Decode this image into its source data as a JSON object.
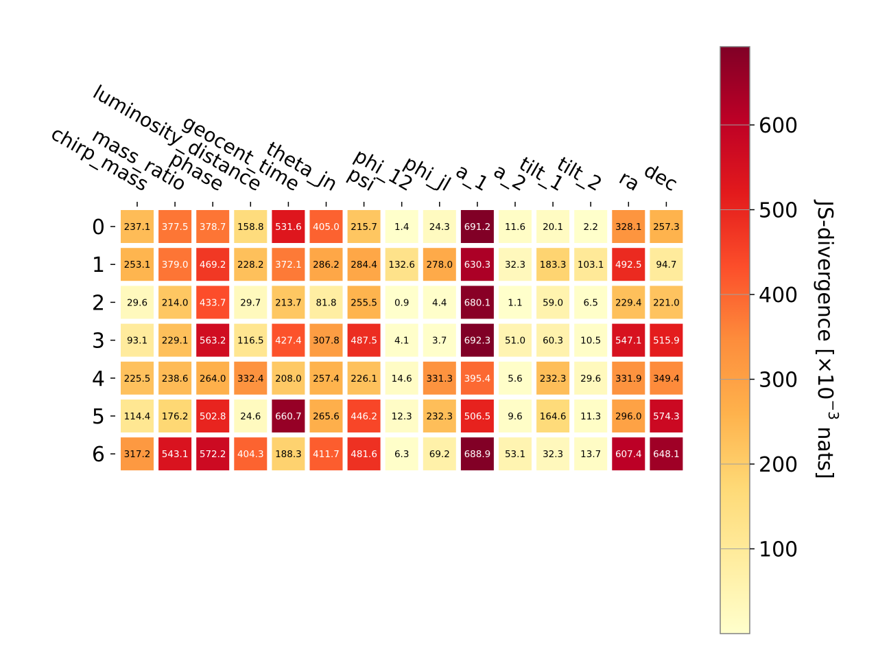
{
  "chart_data": {
    "type": "heatmap",
    "title": "",
    "xlabel": "",
    "ylabel": "",
    "columns": [
      "chirp_mass",
      "mass_ratio",
      "phase",
      "luminosity_distance",
      "geocent_time",
      "theta_jn",
      "psi",
      "phi_12",
      "phi_jl",
      "a_1",
      "a_2",
      "tilt_1",
      "tilt_2",
      "ra",
      "dec"
    ],
    "rows": [
      "0",
      "1",
      "2",
      "3",
      "4",
      "5",
      "6"
    ],
    "values": [
      [
        237.1,
        377.5,
        378.7,
        158.8,
        531.6,
        405.0,
        215.7,
        1.4,
        24.3,
        691.2,
        11.6,
        20.1,
        2.2,
        328.1,
        257.3
      ],
      [
        253.1,
        379.0,
        469.2,
        228.2,
        372.1,
        286.2,
        284.4,
        132.6,
        278.0,
        630.3,
        32.3,
        183.3,
        103.1,
        492.5,
        94.7
      ],
      [
        29.6,
        214.0,
        433.7,
        29.7,
        213.7,
        81.8,
        255.5,
        0.9,
        4.4,
        680.1,
        1.1,
        59.0,
        6.5,
        229.4,
        221.0
      ],
      [
        93.1,
        229.1,
        563.2,
        116.5,
        427.4,
        307.8,
        487.5,
        4.1,
        3.7,
        692.3,
        51.0,
        60.3,
        10.5,
        547.1,
        515.9
      ],
      [
        225.5,
        238.6,
        264.0,
        332.4,
        208.0,
        257.4,
        226.1,
        14.6,
        331.3,
        395.4,
        5.6,
        232.3,
        29.6,
        331.9,
        349.4
      ],
      [
        114.4,
        176.2,
        502.8,
        24.6,
        660.7,
        265.6,
        446.2,
        12.3,
        232.3,
        506.5,
        9.6,
        164.6,
        11.3,
        296.0,
        574.3
      ],
      [
        317.2,
        543.1,
        572.2,
        404.3,
        188.3,
        411.7,
        481.6,
        6.3,
        69.2,
        688.9,
        53.1,
        32.3,
        13.7,
        607.4,
        648.1
      ]
    ],
    "colormap": "YlOrRd",
    "colorbar": {
      "label": "JS-divergence [×10",
      "label_exponent": "−3",
      "label_unit": " nats]",
      "range": [
        0,
        692.3
      ],
      "ticks": [
        100,
        200,
        300,
        400,
        500,
        600
      ]
    }
  }
}
